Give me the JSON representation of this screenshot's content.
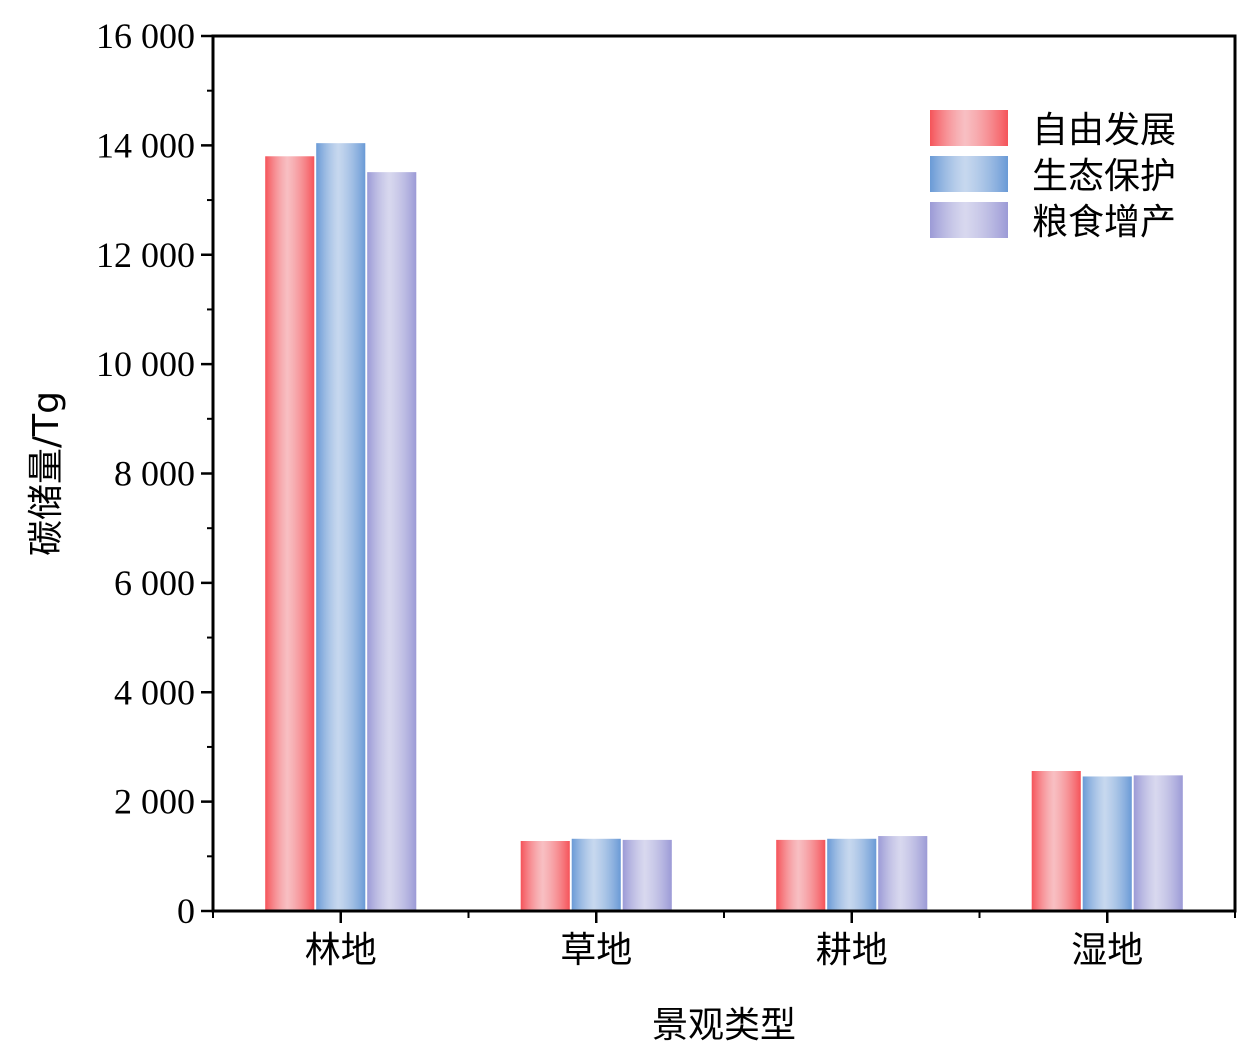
{
  "chart_data": {
    "type": "bar",
    "categories": [
      "林地",
      "草地",
      "耕地",
      "湿地"
    ],
    "series": [
      {
        "name": "自由发展",
        "values": [
          13800,
          1280,
          1300,
          2560
        ],
        "color": "#f5545a"
      },
      {
        "name": "生态保护",
        "values": [
          14040,
          1320,
          1320,
          2460
        ],
        "color": "#6a9ad6"
      },
      {
        "name": "粮食增产",
        "values": [
          13510,
          1300,
          1370,
          2480
        ],
        "color": "#9c9ad6"
      }
    ],
    "xlabel": "景观类型",
    "ylabel": "碳储量/Tg",
    "ylim": [
      0,
      16000
    ],
    "yticks": [
      0,
      2000,
      4000,
      6000,
      8000,
      10000,
      12000,
      14000,
      16000
    ],
    "ytick_labels": [
      "0",
      "2 000",
      "4 000",
      "6 000",
      "8 000",
      "10 000",
      "12 000",
      "14 000",
      "16 000"
    ],
    "legend_position": "top-right",
    "grid": false
  }
}
